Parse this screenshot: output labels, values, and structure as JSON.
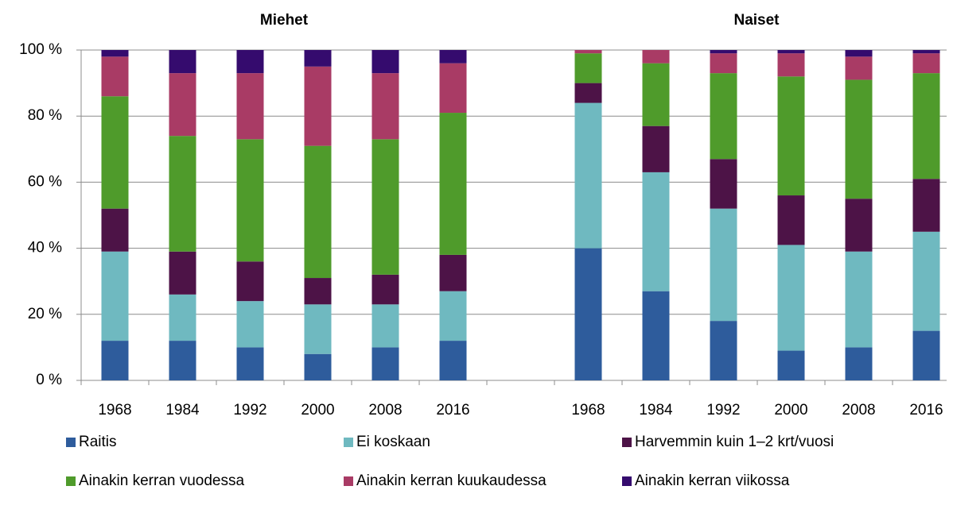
{
  "chart_data": {
    "type": "stacked_bar",
    "annotations": [
      "Miehet",
      "Naiset"
    ],
    "categories": [
      "1968",
      "1984",
      "1992",
      "2000",
      "2008",
      "2016",
      null,
      "1968",
      "1984",
      "1992",
      "2000",
      "2008",
      "2016"
    ],
    "series": [
      {
        "name": "Raitis",
        "color": "#2e5c9c",
        "values": [
          12,
          12,
          10,
          8,
          10,
          12,
          null,
          40,
          27,
          18,
          9,
          10,
          15
        ]
      },
      {
        "name": "Ei koskaan",
        "color": "#6fb9c0",
        "values": [
          27,
          14,
          14,
          15,
          13,
          15,
          null,
          44,
          36,
          34,
          32,
          29,
          30
        ]
      },
      {
        "name": "Harvemmin kuin 1–2 krt/vuosi",
        "color": "#4d1347",
        "values": [
          13,
          13,
          12,
          8,
          9,
          11,
          null,
          6,
          14,
          15,
          15,
          16,
          16
        ]
      },
      {
        "name": "Ainakin kerran vuodessa",
        "color": "#4f9b2b",
        "values": [
          34,
          35,
          37,
          40,
          41,
          43,
          null,
          9,
          19,
          26,
          36,
          36,
          32
        ]
      },
      {
        "name": "Ainakin kerran kuukaudessa",
        "color": "#a93b65",
        "values": [
          12,
          19,
          20,
          24,
          20,
          15,
          null,
          1,
          4,
          6,
          7,
          7,
          6
        ]
      },
      {
        "name": "Ainakin kerran viikossa",
        "color": "#350b6e",
        "values": [
          2,
          7,
          7,
          5,
          7,
          4,
          null,
          0,
          0,
          1,
          1,
          2,
          1
        ]
      }
    ],
    "ylim": [
      0,
      100
    ],
    "yticks": [
      {
        "value": 0,
        "label": "0 %"
      },
      {
        "value": 20,
        "label": "20 %"
      },
      {
        "value": 40,
        "label": "40 %"
      },
      {
        "value": 60,
        "label": "60 %"
      },
      {
        "value": 80,
        "label": "80 %"
      },
      {
        "value": 100,
        "label": "100 %"
      }
    ],
    "grid": true,
    "legend": "bottom"
  }
}
